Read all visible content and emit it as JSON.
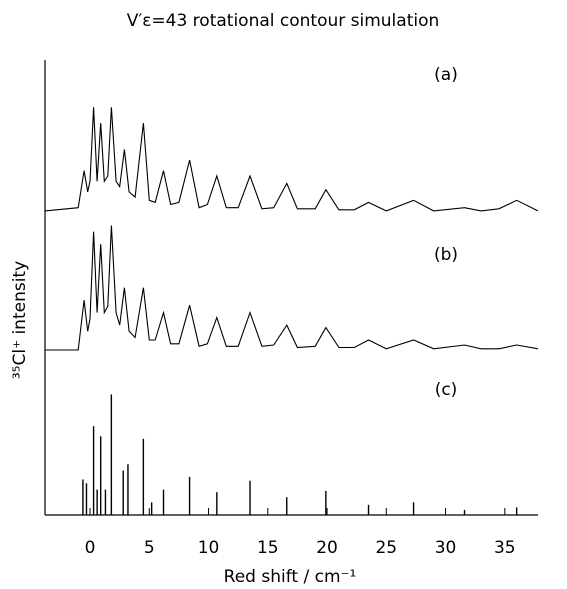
{
  "chart_data": [
    {
      "type": "line",
      "title": "V′ε=43 rotational contour simulation",
      "ylabel": "³⁵Cl⁺ intensity",
      "annotation": "(a)",
      "color": "#000000",
      "xlim": [
        -3.8,
        37.8
      ],
      "ylim": [
        0,
        1.4
      ],
      "x": [
        -3.8,
        -1,
        -0.5,
        -0.2,
        0,
        0.3,
        0.6,
        0.9,
        1.2,
        1.5,
        1.8,
        2.2,
        2.5,
        2.9,
        3.3,
        3.8,
        4.5,
        5,
        5.5,
        6.2,
        6.8,
        7.5,
        8.4,
        9.2,
        9.9,
        10.7,
        11.5,
        12.5,
        13.5,
        14.5,
        15.5,
        16.6,
        17.5,
        19,
        19.9,
        21,
        22.3,
        23.5,
        25,
        27.3,
        29,
        31.6,
        33,
        34.5,
        36,
        37.8
      ],
      "values": [
        0.02,
        0.05,
        0.4,
        0.2,
        0.3,
        1.0,
        0.3,
        0.85,
        0.3,
        0.35,
        1.0,
        0.3,
        0.25,
        0.6,
        0.2,
        0.15,
        0.85,
        0.12,
        0.1,
        0.4,
        0.08,
        0.1,
        0.5,
        0.05,
        0.08,
        0.35,
        0.05,
        0.05,
        0.35,
        0.04,
        0.05,
        0.28,
        0.04,
        0.04,
        0.22,
        0.03,
        0.03,
        0.1,
        0.02,
        0.12,
        0.02,
        0.05,
        0.02,
        0.04,
        0.12,
        0.02
      ]
    },
    {
      "type": "line",
      "annotation": "(b)",
      "color": "#000000",
      "xlim": [
        -3.8,
        37.8
      ],
      "ylim": [
        0,
        1.1
      ],
      "x": [
        -3.8,
        -1,
        -0.5,
        -0.2,
        0,
        0.3,
        0.6,
        0.9,
        1.2,
        1.5,
        1.8,
        2.2,
        2.5,
        2.9,
        3.3,
        3.8,
        4.5,
        5,
        5.5,
        6.2,
        6.8,
        7.5,
        8.4,
        9.2,
        9.9,
        10.7,
        11.5,
        12.5,
        13.5,
        14.5,
        15.5,
        16.6,
        17.5,
        19,
        19.9,
        21,
        22.3,
        23.5,
        25,
        27.3,
        29,
        31.6,
        33,
        34.5,
        36,
        37.8
      ],
      "values": [
        0,
        0,
        0.4,
        0.15,
        0.25,
        0.95,
        0.3,
        0.85,
        0.3,
        0.35,
        1.0,
        0.3,
        0.2,
        0.5,
        0.15,
        0.1,
        0.5,
        0.08,
        0.08,
        0.3,
        0.05,
        0.05,
        0.36,
        0.03,
        0.05,
        0.26,
        0.03,
        0.03,
        0.3,
        0.03,
        0.04,
        0.2,
        0.02,
        0.03,
        0.18,
        0.02,
        0.02,
        0.08,
        0.01,
        0.08,
        0.01,
        0.04,
        0.01,
        0.01,
        0.04,
        0.01
      ]
    },
    {
      "type": "stem",
      "annotation": "(c)",
      "color": "#000000",
      "xlabel": "Red shift / cm⁻¹",
      "xlim": [
        -3.8,
        37.8
      ],
      "ylim": [
        0,
        1.3
      ],
      "xticks": [
        0,
        5,
        10,
        15,
        20,
        25,
        30,
        35
      ],
      "x": [
        -0.6,
        -0.3,
        0.3,
        0.6,
        0.9,
        1.3,
        1.8,
        2.8,
        3.2,
        4.5,
        5.2,
        6.2,
        8.4,
        10.7,
        13.5,
        16.6,
        19.9,
        23.5,
        27.3,
        31.6,
        36
      ],
      "values": [
        0.28,
        0.25,
        0.7,
        0.2,
        0.62,
        0.2,
        0.95,
        0.35,
        0.4,
        0.6,
        0.1,
        0.2,
        0.3,
        0.18,
        0.27,
        0.14,
        0.19,
        0.08,
        0.1,
        0.04,
        0.06
      ]
    }
  ]
}
